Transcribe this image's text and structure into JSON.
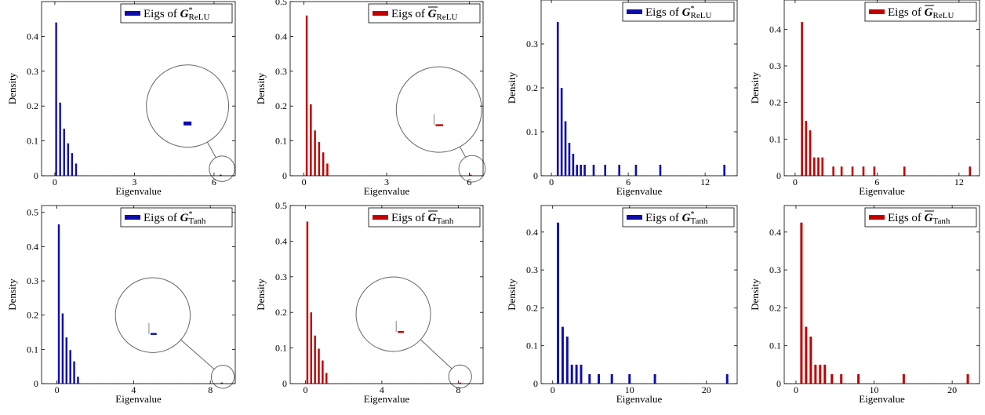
{
  "colors": {
    "blue": "#0d0dab",
    "red": "#c00000",
    "frame": "#000000",
    "zoom": "#666666",
    "baseline": "#666666"
  },
  "chart_data": [
    {
      "type": "bar",
      "panel": "top-left",
      "color": "blue",
      "legend_text": "Eigs of ",
      "legend_symbol": "G",
      "legend_star": "*",
      "legend_overline": false,
      "legend_sub": "ReLU",
      "legend_position": "top-right",
      "xlabel": "Eigenvalue",
      "ylabel": "Density",
      "xlim": [
        -0.5,
        6.8
      ],
      "ylim": [
        0,
        0.5
      ],
      "xticks": [
        0,
        3,
        6
      ],
      "xtick_labels": [
        "0",
        "3",
        "6"
      ],
      "yticks": [
        0,
        0.1,
        0.2,
        0.3,
        0.4
      ],
      "ytick_labels": [
        "0",
        "0.1",
        "0.2",
        "0.3",
        "0.4"
      ],
      "bar_width": 0.07,
      "x": [
        0.05,
        0.2,
        0.35,
        0.5,
        0.65,
        0.8,
        6.25
      ],
      "values": [
        0.44,
        0.21,
        0.135,
        0.093,
        0.065,
        0.035,
        0.003
      ],
      "zoom": {
        "x": 6.3,
        "y": 0.02,
        "small_r": 0.48,
        "big_center": [
          5.0,
          0.2
        ],
        "big_r": 1.55,
        "seg_x0": 4.85,
        "seg_x1": 5.15,
        "seg_y": 0.15,
        "thick": true
      }
    },
    {
      "type": "bar",
      "panel": "top-second",
      "color": "red",
      "legend_text": "Eigs of ",
      "legend_symbol": "G",
      "legend_star": "",
      "legend_overline": true,
      "legend_sub": "ReLU",
      "legend_position": "top-right",
      "xlabel": "Eigenvalue",
      "ylabel": "Density",
      "xlim": [
        -0.5,
        6.5
      ],
      "ylim": [
        0,
        0.5
      ],
      "xticks": [
        0,
        3,
        6
      ],
      "xtick_labels": [
        "0",
        "3",
        "6"
      ],
      "yticks": [
        0,
        0.1,
        0.2,
        0.3,
        0.4,
        0.5
      ],
      "ytick_labels": [
        "0",
        "0.1",
        "0.2",
        "0.3",
        "0.4",
        "0.5"
      ],
      "bar_width": 0.07,
      "x": [
        0.1,
        0.25,
        0.4,
        0.55,
        0.7,
        0.85,
        6.05
      ],
      "values": [
        0.46,
        0.205,
        0.13,
        0.097,
        0.067,
        0.035,
        0.003
      ],
      "zoom": {
        "x": 6.1,
        "y": 0.02,
        "small_r": 0.48,
        "big_center": [
          4.9,
          0.19
        ],
        "big_r": 1.55,
        "seg_x0": 4.72,
        "seg_x1": 5.05,
        "seg_y": 0.145,
        "thick": false
      }
    },
    {
      "type": "bar",
      "panel": "top-third",
      "color": "blue",
      "legend_text": "Eigs of ",
      "legend_symbol": "G",
      "legend_star": "*",
      "legend_overline": false,
      "legend_sub": "ReLU",
      "legend_position": "top-right",
      "xlabel": "Eigenvalue",
      "ylabel": "Density",
      "xlim": [
        -0.8,
        14.5
      ],
      "ylim": [
        0,
        0.4
      ],
      "xticks": [
        0,
        6,
        12
      ],
      "xtick_labels": [
        "0",
        "6",
        "12"
      ],
      "yticks": [
        0,
        0.1,
        0.2,
        0.3
      ],
      "ytick_labels": [
        "0",
        "0.1",
        "0.2",
        "0.3"
      ],
      "bar_width": 0.16,
      "x": [
        0.5,
        0.8,
        1.1,
        1.4,
        1.7,
        2.0,
        2.3,
        2.6,
        3.3,
        4.2,
        5.3,
        6.6,
        8.5,
        13.5
      ],
      "values": [
        0.35,
        0.2,
        0.124,
        0.075,
        0.05,
        0.025,
        0.025,
        0.025,
        0.025,
        0.025,
        0.025,
        0.025,
        0.025,
        0.025
      ]
    },
    {
      "type": "bar",
      "panel": "top-right",
      "color": "red",
      "legend_text": "Eigs of ",
      "legend_symbol": "G",
      "legend_star": "",
      "legend_overline": true,
      "legend_sub": "ReLU",
      "legend_position": "top-right",
      "xlabel": "Eigenvalue",
      "ylabel": "Density",
      "xlim": [
        -0.8,
        13.5
      ],
      "ylim": [
        0,
        0.48
      ],
      "xticks": [
        0,
        6,
        12
      ],
      "xtick_labels": [
        "0",
        "6",
        "12"
      ],
      "yticks": [
        0,
        0.1,
        0.2,
        0.3,
        0.4
      ],
      "ytick_labels": [
        "0",
        "0.1",
        "0.2",
        "0.3",
        "0.4"
      ],
      "bar_width": 0.15,
      "x": [
        0.5,
        0.8,
        1.1,
        1.4,
        1.7,
        2.0,
        2.8,
        3.4,
        4.2,
        5.0,
        5.8,
        8.0,
        12.8
      ],
      "values": [
        0.42,
        0.15,
        0.124,
        0.05,
        0.05,
        0.05,
        0.025,
        0.025,
        0.025,
        0.025,
        0.025,
        0.025,
        0.025
      ]
    },
    {
      "type": "bar",
      "panel": "bottom-left",
      "color": "blue",
      "legend_text": "Eigs of ",
      "legend_symbol": "G",
      "legend_star": "*",
      "legend_overline": false,
      "legend_sub": "Tanh",
      "legend_position": "top-right",
      "xlabel": "Eigenvalue",
      "ylabel": "Density",
      "xlim": [
        -0.8,
        9.3
      ],
      "ylim": [
        0,
        0.52
      ],
      "xticks": [
        0,
        4,
        8
      ],
      "xtick_labels": [
        "0",
        "4",
        "8"
      ],
      "yticks": [
        0,
        0.1,
        0.2,
        0.3,
        0.4,
        0.5
      ],
      "ytick_labels": [
        "0",
        "0.1",
        "0.2",
        "0.3",
        "0.4",
        "0.5"
      ],
      "bar_width": 0.1,
      "x": [
        0.1,
        0.3,
        0.5,
        0.7,
        0.9,
        1.1,
        8.6
      ],
      "values": [
        0.465,
        0.205,
        0.135,
        0.098,
        0.065,
        0.02,
        0.003
      ],
      "zoom": {
        "x": 8.65,
        "y": 0.02,
        "small_r": 0.6,
        "big_center": [
          5.0,
          0.2
        ],
        "big_r": 1.95,
        "seg_x0": 4.8,
        "seg_x1": 5.2,
        "seg_y": 0.145,
        "thick": false
      }
    },
    {
      "type": "bar",
      "panel": "bottom-second",
      "color": "red",
      "legend_text": "Eigs of ",
      "legend_symbol": "G",
      "legend_star": "",
      "legend_overline": true,
      "legend_sub": "Tanh",
      "legend_position": "top-right",
      "xlabel": "Eigenvalue",
      "ylabel": "Density",
      "xlim": [
        -0.8,
        9.3
      ],
      "ylim": [
        0,
        0.5
      ],
      "xticks": [
        0,
        4,
        8
      ],
      "xtick_labels": [
        "0",
        "4",
        "8"
      ],
      "yticks": [
        0,
        0.1,
        0.2,
        0.3,
        0.4,
        0.5
      ],
      "ytick_labels": [
        "0",
        "0.1",
        "0.2",
        "0.3",
        "0.4",
        "0.5"
      ],
      "bar_width": 0.1,
      "x": [
        0.1,
        0.3,
        0.5,
        0.7,
        0.9,
        1.1,
        8.1
      ],
      "values": [
        0.455,
        0.2,
        0.135,
        0.098,
        0.065,
        0.03,
        0.003
      ],
      "zoom": {
        "x": 8.1,
        "y": 0.02,
        "small_r": 0.6,
        "big_center": [
          4.6,
          0.195
        ],
        "big_r": 1.95,
        "seg_x0": 4.75,
        "seg_x1": 5.15,
        "seg_y": 0.145,
        "thick": false
      }
    },
    {
      "type": "bar",
      "panel": "bottom-third",
      "color": "blue",
      "legend_text": "Eigs of ",
      "legend_symbol": "G",
      "legend_star": "*",
      "legend_overline": false,
      "legend_sub": "Tanh",
      "legend_position": "top-right",
      "xlabel": "Eigenvalue",
      "ylabel": "Density",
      "xlim": [
        -1.5,
        24.0
      ],
      "ylim": [
        0,
        0.47
      ],
      "xticks": [
        0,
        10,
        20
      ],
      "xtick_labels": [
        "0",
        "10",
        "20"
      ],
      "yticks": [
        0,
        0.1,
        0.2,
        0.3,
        0.4
      ],
      "ytick_labels": [
        "0",
        "0.1",
        "0.2",
        "0.3",
        "0.4"
      ],
      "bar_width": 0.3,
      "x": [
        0.7,
        1.3,
        1.9,
        2.5,
        3.1,
        3.7,
        4.8,
        6.0,
        7.7,
        10.0,
        13.3,
        22.7
      ],
      "values": [
        0.425,
        0.15,
        0.124,
        0.05,
        0.05,
        0.05,
        0.025,
        0.025,
        0.025,
        0.025,
        0.025,
        0.025
      ]
    },
    {
      "type": "bar",
      "panel": "bottom-right",
      "color": "red",
      "legend_text": "Eigs of ",
      "legend_symbol": "G",
      "legend_star": "",
      "legend_overline": true,
      "legend_sub": "Tanh",
      "legend_position": "top-right",
      "xlabel": "Eigenvalue",
      "ylabel": "Density",
      "xlim": [
        -1.5,
        23.5
      ],
      "ylim": [
        0,
        0.47
      ],
      "xticks": [
        0,
        10,
        20
      ],
      "xtick_labels": [
        "0",
        "10",
        "20"
      ],
      "yticks": [
        0,
        0.1,
        0.2,
        0.3,
        0.4
      ],
      "ytick_labels": [
        "0",
        "0.1",
        "0.2",
        "0.3",
        "0.4"
      ],
      "bar_width": 0.3,
      "x": [
        0.7,
        1.3,
        1.9,
        2.5,
        3.1,
        3.7,
        4.6,
        5.8,
        8.0,
        13.8,
        22.0
      ],
      "values": [
        0.425,
        0.15,
        0.124,
        0.05,
        0.05,
        0.05,
        0.025,
        0.025,
        0.025,
        0.025,
        0.025
      ]
    }
  ]
}
